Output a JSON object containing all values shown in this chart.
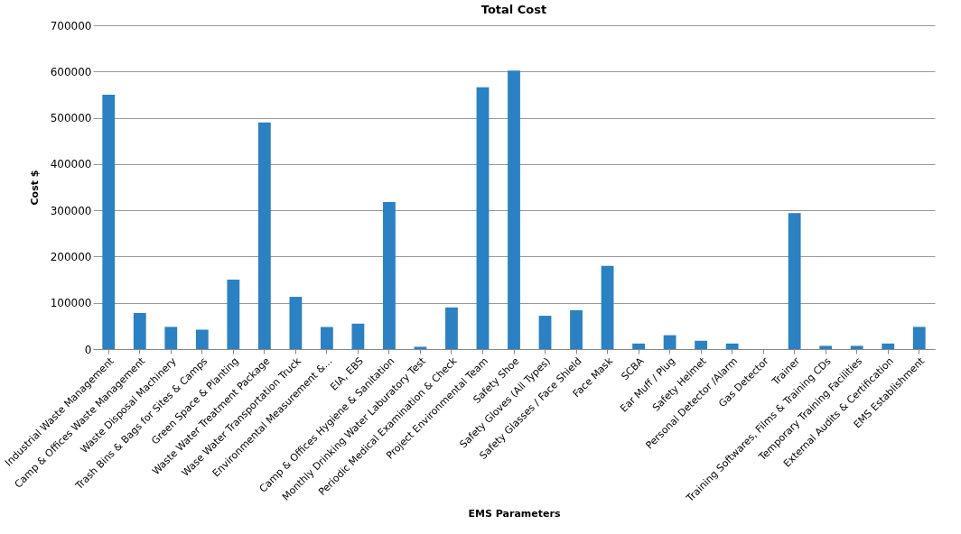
{
  "chart_data": {
    "type": "bar",
    "title": "Total Cost",
    "xlabel": "EMS Parameters",
    "ylabel": "Cost $",
    "categories": [
      "Industrial Waste Management",
      "Camp & Offices Waste Management",
      "Waste Disposal Machinery",
      "Trash Bins & Bags for Sites & Camps",
      "Green Space & Planting",
      "Waste Water Treatment Package",
      "Wase Water Transportation Truck",
      "Environmental Measurement &...",
      "EIA, EBS",
      "Camp & Offices Hygiene & Sanitation",
      "Monthly Drinking Water Laburatory Test",
      "Periodic Medical Examination & Check",
      "Project Environmental Team",
      "Safety Shoe",
      "Safety Gloves (All Types)",
      "Safety Glasses / Face Shield",
      "Face Mask",
      "SCBA",
      "Ear Muff / Plug",
      "Safety Helmet",
      "Personal Detector /Alarm",
      "Gas Detector",
      "Trainer",
      "Training Softwares, Films & Training CDs",
      "Temporary Training Facilities",
      "External Audits & Certification",
      "EMS Establishment"
    ],
    "values": [
      550000,
      78000,
      48000,
      42000,
      150000,
      490000,
      113000,
      48000,
      55000,
      318000,
      5000,
      90000,
      566000,
      602000,
      72000,
      84000,
      180000,
      12000,
      30000,
      18000,
      12000,
      0,
      294000,
      7000,
      7000,
      12000,
      48000
    ],
    "color": "#2a81c3",
    "ylim": [
      0,
      700000
    ],
    "yticks": [
      0,
      100000,
      200000,
      300000,
      400000,
      500000,
      600000,
      700000
    ],
    "grid": "y"
  }
}
